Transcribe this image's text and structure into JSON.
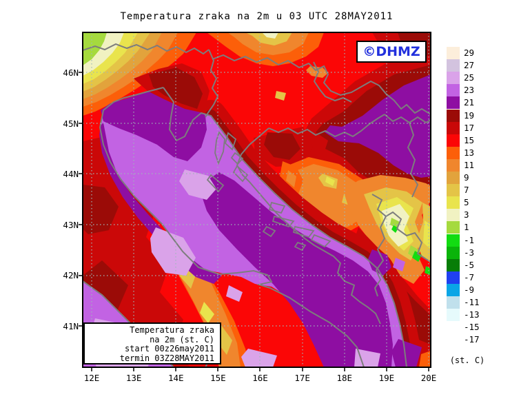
{
  "title": "Temperatura zraka na 2m u 03 UTC 28MAY2011",
  "watermark": {
    "text": "©DHMZ",
    "color": "#2230dd"
  },
  "legend_box": {
    "lines": [
      "Temperatura zraka",
      "na 2m (st. C)",
      "start 00z26may2011",
      "termin 03Z28MAY2011"
    ]
  },
  "x_axis_labels": [
    "12E",
    "13E",
    "14E",
    "15E",
    "16E",
    "17E",
    "18E",
    "19E",
    "20E"
  ],
  "y_axis_labels": [
    "46N",
    "45N",
    "44N",
    "43N",
    "42N",
    "41N"
  ],
  "colorbar": {
    "unit_label": "(st. C)",
    "cells": [
      {
        "label": "29",
        "color": "#fceedb"
      },
      {
        "label": "27",
        "color": "#d3c3df"
      },
      {
        "label": "25",
        "color": "#daa3e9"
      },
      {
        "label": "23",
        "color": "#c263e3"
      },
      {
        "label": "21",
        "color": "#8e0ea2"
      },
      {
        "label": "19",
        "color": "#9b0b07"
      },
      {
        "label": "17",
        "color": "#c90808"
      },
      {
        "label": "15",
        "color": "#fb0606"
      },
      {
        "label": "13",
        "color": "#fc5f09"
      },
      {
        "label": "11",
        "color": "#f0862d"
      },
      {
        "label": "9",
        "color": "#e2a33c"
      },
      {
        "label": "7",
        "color": "#e4c447"
      },
      {
        "label": "5",
        "color": "#e9e44d"
      },
      {
        "label": "3",
        "color": "#f1f2c2"
      },
      {
        "label": "1",
        "color": "#a5da3e"
      },
      {
        "label": "-1",
        "color": "#12dc12"
      },
      {
        "label": "-3",
        "color": "#0ab40a"
      },
      {
        "label": "-5",
        "color": "#077d07"
      },
      {
        "label": "-7",
        "color": "#2040f0"
      },
      {
        "label": "-9",
        "color": "#0aa5e6"
      },
      {
        "label": "-11",
        "color": "#c0e0ec"
      },
      {
        "label": "-13",
        "color": "#e6fafc"
      },
      {
        "label": "-15",
        "color": "#ffffff"
      },
      {
        "label": "-17",
        "color": "#ffffff"
      }
    ]
  },
  "chart_data": {
    "type": "filled-contour-map",
    "title": "Temperatura zraka na 2m u 03 UTC 28MAY2011",
    "variable": "Air temperature at 2 m (st. C)",
    "model_start": "00z26may2011",
    "valid_time": "03Z28MAY2011",
    "lon_ticks_deg_e": [
      12,
      13,
      14,
      15,
      16,
      17,
      18,
      19,
      20
    ],
    "lat_ticks_deg_n": [
      46,
      45,
      44,
      43,
      42,
      41
    ],
    "contour_levels_c": [
      29,
      27,
      25,
      23,
      21,
      19,
      17,
      15,
      13,
      11,
      9,
      7,
      5,
      3,
      1,
      -1,
      -3,
      -5,
      -7,
      -9,
      -11,
      -13,
      -15,
      -17
    ],
    "graticule": "1-degree dotted grid",
    "legend_position": "right",
    "notable_fields": {
      "adriatic_sea_c": "19-23 (purple/orchid)",
      "coastal_land_c": "15-19 (dark red/maroon)",
      "pannonian_inland_c": "13-15 (red)",
      "nw_alps_corner_c": "-1 to 9 (green/yellow/orange bands)",
      "dinaric_bosnia_pockets_c": "1-11 (orange/gold/pale yellow)",
      "montenegro_mountains_c": "-3 to 9 (pale yellow core, green spots)"
    }
  }
}
